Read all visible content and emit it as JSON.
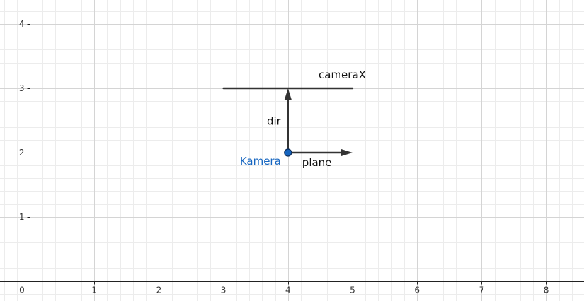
{
  "chart_data": {
    "type": "scatter",
    "xlim": [
      0,
      8.6
    ],
    "ylim": [
      -0.3,
      4.4
    ],
    "grid": true,
    "x_ticks": [
      "0",
      "1",
      "2",
      "3",
      "4",
      "5",
      "6",
      "7",
      "8"
    ],
    "y_ticks": [
      "1",
      "2",
      "3",
      "4"
    ],
    "point": {
      "label": "Kamera",
      "x": 4,
      "y": 2,
      "color": "#1565c0"
    },
    "segments": [
      {
        "label": "cameraX",
        "from": [
          3,
          3
        ],
        "to": [
          5,
          3
        ],
        "arrow": false,
        "color": "#333333"
      }
    ],
    "vectors": [
      {
        "label": "dir",
        "from": [
          4,
          2
        ],
        "to": [
          4,
          3
        ],
        "color": "#333333"
      },
      {
        "label": "plane",
        "from": [
          4,
          2
        ],
        "to": [
          5,
          2
        ],
        "color": "#333333"
      }
    ]
  }
}
